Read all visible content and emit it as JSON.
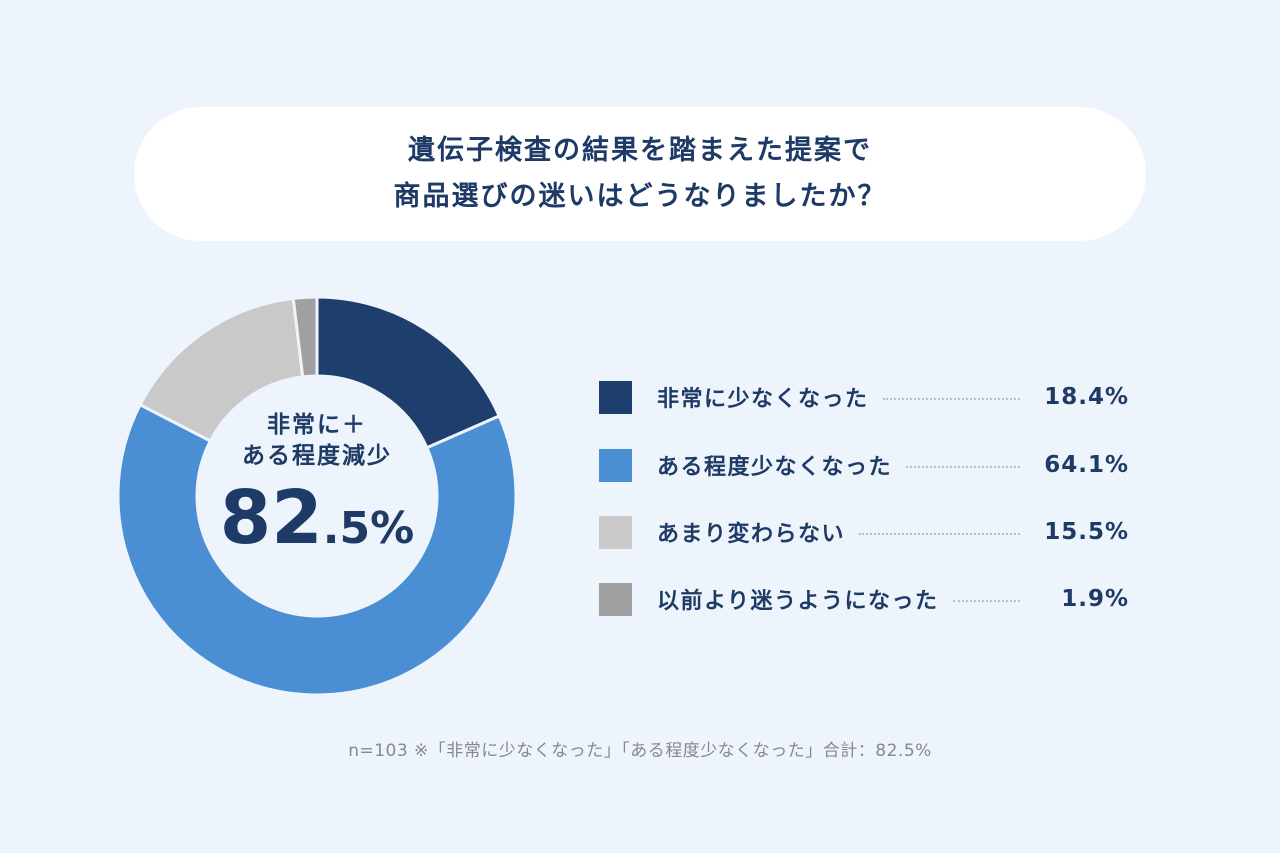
{
  "title": {
    "line1": "遺伝子検査の結果を踏まえた提案で",
    "line2": "商品選びの迷いはどうなりましたか？"
  },
  "center": {
    "line1": "非常に＋",
    "line2": "ある程度減少",
    "value_main": "82",
    "value_sub": ".5%"
  },
  "chart_data": {
    "type": "pie",
    "donut": true,
    "start": "top, clockwise",
    "categories": [
      "非常に少なくなった",
      "ある程度少なくなった",
      "あまり変わらない",
      "以前より迷うようになった"
    ],
    "values": [
      18.4,
      64.1,
      15.5,
      1.9
    ],
    "value_labels": [
      "18.4%",
      "64.1%",
      "15.5%",
      "1.9%"
    ],
    "colors": [
      "#1e3f6e",
      "#4a8fd4",
      "#c9c9c9",
      "#a0a0a0"
    ],
    "legend_placement": "right"
  },
  "note": "n=103 ※「非常に少なくなった」「ある程度少なくなった」合計：82.5%"
}
